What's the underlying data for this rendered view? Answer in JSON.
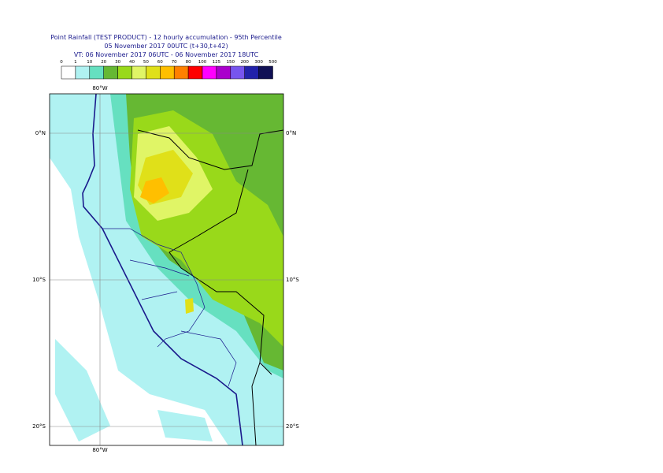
{
  "header": {
    "title": "Point Rainfall (TEST PRODUCT) - 12 hourly accumulation - 95th Percentile",
    "base_time": "05 November 2017 00UTC (t+30,t+42)",
    "valid_time": "VT: 06 November 2017 06UTC - 06 November 2017 18UTC"
  },
  "legend": {
    "levels": [
      0,
      1,
      10,
      20,
      30,
      40,
      50,
      60,
      70,
      80,
      100,
      125,
      150,
      200,
      300,
      500
    ],
    "colors": [
      "#ffffff",
      "#b0f2f2",
      "#66e0c0",
      "#66b833",
      "#99d91a",
      "#e0f566",
      "#e0e019",
      "#ffbf00",
      "#ff8000",
      "#ff0000",
      "#ff00ff",
      "#aa00cc",
      "#7755ee",
      "#2222aa",
      "#111155"
    ]
  },
  "map": {
    "lon_labels": [
      "80°W"
    ],
    "lat_labels": [
      "0°N",
      "10°S",
      "20°S"
    ]
  }
}
